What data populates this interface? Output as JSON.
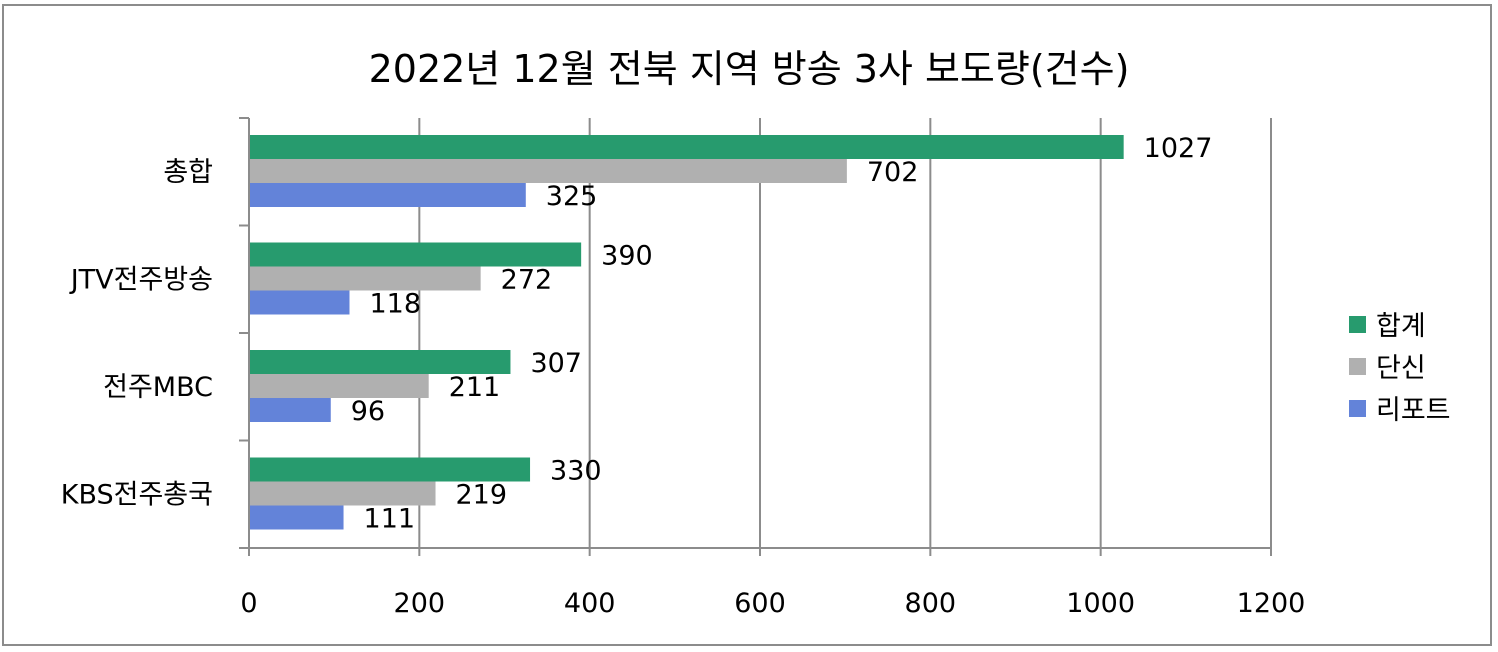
{
  "chart_data": {
    "type": "bar",
    "orientation": "horizontal",
    "title": "2022년 12월 전북 지역 방송 3사 보도량(건수)",
    "xlabel": "",
    "ylabel": "",
    "categories": [
      "총합",
      "JTV전주방송",
      "전주MBC",
      "KBS전주총국"
    ],
    "series": [
      {
        "name": "합계",
        "values": [
          1027,
          390,
          307,
          330
        ],
        "color": "#279b6e"
      },
      {
        "name": "단신",
        "values": [
          702,
          272,
          211,
          219
        ],
        "color": "#b0b0b0"
      },
      {
        "name": "리포트",
        "values": [
          325,
          118,
          96,
          111
        ],
        "color": "#6383d9"
      }
    ],
    "xlim": [
      0,
      1200
    ],
    "xticks": [
      "0",
      "200",
      "400",
      "600",
      "800",
      "1000",
      "1200"
    ],
    "grid": true,
    "data_labels": true,
    "legend_position": "right"
  }
}
